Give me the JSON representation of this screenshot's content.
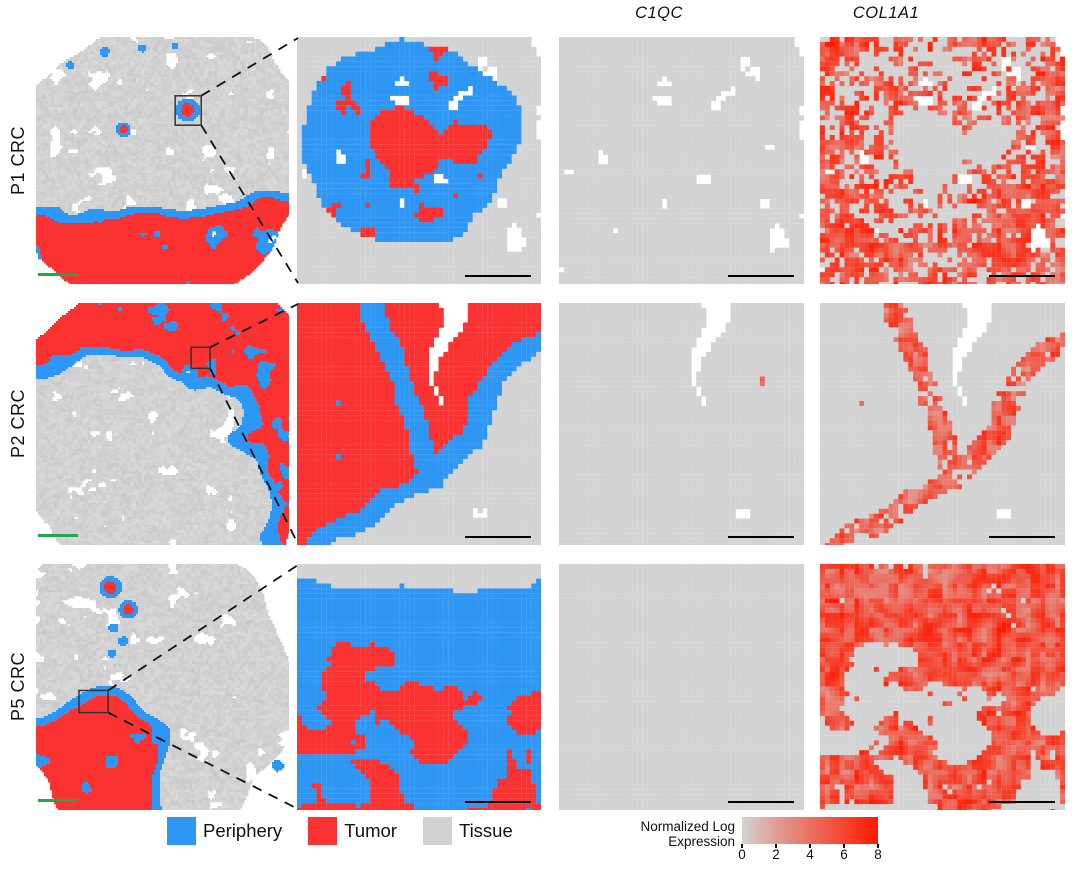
{
  "figure": {
    "titles": [
      {
        "text": "C1QC"
      },
      {
        "text": "COL1A1"
      }
    ],
    "rows": [
      {
        "label": "P1 CRC"
      },
      {
        "label": "P2 CRC"
      },
      {
        "label": "P5 CRC"
      }
    ],
    "legend": {
      "items": [
        {
          "label": "Periphery",
          "color": "#2E96F3"
        },
        {
          "label": "Tumor",
          "color": "#FA3332"
        },
        {
          "label": "Tissue",
          "color": "#D2D2D2"
        }
      ]
    },
    "colorbar": {
      "label_line1": "Normalized Log",
      "label_line2": "Expression",
      "min": 0,
      "max": 8,
      "ticks": [
        "0",
        "2",
        "4",
        "6",
        "8"
      ],
      "start_color": "#D3D3D3",
      "end_color": "#FF1A00"
    },
    "colors": {
      "periphery": "#2E96F3",
      "tumor": "#FA3332",
      "tissue": "#D3D3D3",
      "background": "#FFFFFF",
      "scalebar_overview": "#1FA84F",
      "scalebar_inset": "#000000",
      "inset_box_stroke": "#333333",
      "connector_stroke": "#111111"
    }
  },
  "panels": [
    {
      "row": 0,
      "col": "overview",
      "kind": "overview",
      "layout": "p1",
      "seed": 11,
      "scalebar": "green",
      "inset_box": {
        "u": 0.55,
        "v": 0.238,
        "w": 0.103,
        "h": 0.119
      },
      "spots": [
        {
          "u": 0.6,
          "v": 0.295,
          "r": 0.048,
          "kind": "ring"
        },
        {
          "u": 0.345,
          "v": 0.375,
          "r": 0.03,
          "kind": "ring"
        },
        {
          "u": 0.27,
          "v": 0.06,
          "r": 0.02,
          "kind": "dot"
        },
        {
          "u": 0.42,
          "v": 0.045,
          "r": 0.016,
          "kind": "dot"
        },
        {
          "u": 0.135,
          "v": 0.115,
          "r": 0.016,
          "kind": "dot"
        },
        {
          "u": 0.55,
          "v": 0.035,
          "r": 0.013,
          "kind": "dot"
        }
      ]
    },
    {
      "row": 0,
      "col": "zoom",
      "kind": "segmentation",
      "layout": "ring",
      "seed": 21,
      "scalebar": "black"
    },
    {
      "row": 0,
      "col": "c1qc",
      "kind": "expression",
      "gene": "C1QC",
      "layout": "ring",
      "seed": 21,
      "seed_expr": 31,
      "scalebar": "black",
      "density": {
        "tissue": 0.07,
        "periphery": 0.13,
        "tumor": 0.05
      },
      "intensity": [
        2,
        5.5
      ]
    },
    {
      "row": 0,
      "col": "col1a1",
      "kind": "expression",
      "gene": "COL1A1",
      "layout": "ring",
      "seed": 21,
      "seed_expr": 32,
      "scalebar": "black",
      "density": {
        "tissue": 0.65,
        "periphery": 0.55,
        "tumor": 0.07
      },
      "intensity": [
        2.5,
        8
      ]
    },
    {
      "row": 1,
      "col": "overview",
      "kind": "overview",
      "layout": "p2",
      "seed": 12,
      "scalebar": "green",
      "inset_box": {
        "u": 0.613,
        "v": 0.183,
        "w": 0.075,
        "h": 0.087
      },
      "spots": []
    },
    {
      "row": 1,
      "col": "zoom",
      "kind": "segmentation",
      "layout": "band",
      "seed": 22,
      "scalebar": "black"
    },
    {
      "row": 1,
      "col": "c1qc",
      "kind": "expression",
      "gene": "C1QC",
      "layout": "band",
      "seed": 22,
      "seed_expr": 33,
      "scalebar": "black",
      "density": {
        "tissue": 0.05,
        "periphery": 0.22,
        "tumor": 0.05
      },
      "intensity": [
        2,
        5.5
      ]
    },
    {
      "row": 1,
      "col": "col1a1",
      "kind": "expression",
      "gene": "COL1A1",
      "layout": "band",
      "seed": 22,
      "seed_expr": 34,
      "scalebar": "black",
      "density": {
        "tissue": 0.08,
        "periphery": 0.7,
        "tumor": 0.1
      },
      "intensity": [
        2,
        7.5
      ]
    },
    {
      "row": 2,
      "col": "overview",
      "kind": "overview",
      "layout": "p5",
      "seed": 13,
      "scalebar": "green",
      "inset_box": {
        "u": 0.17,
        "v": 0.514,
        "w": 0.115,
        "h": 0.09
      },
      "spots": [
        {
          "u": 0.295,
          "v": 0.095,
          "r": 0.045,
          "kind": "ring"
        },
        {
          "u": 0.365,
          "v": 0.185,
          "r": 0.038,
          "kind": "ring"
        },
        {
          "u": 0.305,
          "v": 0.26,
          "r": 0.02,
          "kind": "dot"
        },
        {
          "u": 0.345,
          "v": 0.315,
          "r": 0.02,
          "kind": "dot"
        },
        {
          "u": 0.3,
          "v": 0.365,
          "r": 0.017,
          "kind": "dot"
        },
        {
          "u": 0.955,
          "v": 0.82,
          "r": 0.022,
          "kind": "dot"
        }
      ]
    },
    {
      "row": 2,
      "col": "zoom",
      "kind": "segmentation",
      "layout": "shore",
      "seed": 23,
      "scalebar": "black"
    },
    {
      "row": 2,
      "col": "c1qc",
      "kind": "expression",
      "gene": "C1QC",
      "layout": "shore",
      "seed": 23,
      "seed_expr": 35,
      "scalebar": "black",
      "density": {
        "tissue": 0.13,
        "periphery": 0.08,
        "tumor": 0.05
      },
      "intensity": [
        2,
        5.5
      ]
    },
    {
      "row": 2,
      "col": "col1a1",
      "kind": "expression",
      "gene": "COL1A1",
      "layout": "shore",
      "seed": 23,
      "seed_expr": 36,
      "scalebar": "black",
      "density": {
        "tissue": 0.8,
        "periphery": 0.85,
        "tumor": 0.25
      },
      "intensity": [
        2.5,
        8
      ]
    }
  ]
}
